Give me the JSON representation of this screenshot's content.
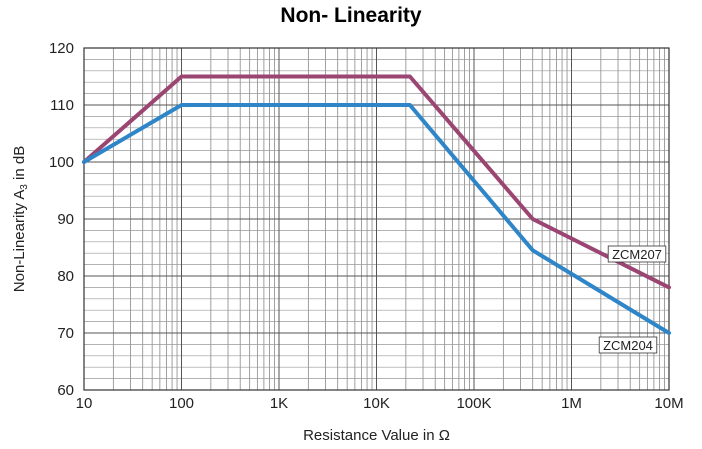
{
  "chart_data": {
    "type": "line",
    "title": "Non- Linearity",
    "xlabel": "Resistance Value in Ω",
    "ylabel": "Non-Linearity A3 in dB",
    "xscale": "log",
    "xlim": [
      10,
      10000000
    ],
    "ylim": [
      60,
      120
    ],
    "x_tick_labels": [
      "10",
      "100",
      "1K",
      "10K",
      "100K",
      "1M",
      "10M"
    ],
    "y_tick_labels": [
      "60",
      "70",
      "80",
      "90",
      "100",
      "110",
      "120"
    ],
    "grid": true,
    "series": [
      {
        "name": "ZCM207",
        "color": "#9b4672",
        "points": [
          [
            10,
            100
          ],
          [
            100,
            115
          ],
          [
            22000,
            115
          ],
          [
            400000,
            90
          ],
          [
            10000000,
            78
          ]
        ]
      },
      {
        "name": "ZCM204",
        "color": "#2e86c8",
        "points": [
          [
            10,
            100
          ],
          [
            100,
            110
          ],
          [
            22000,
            110
          ],
          [
            400000,
            84.5
          ],
          [
            10000000,
            70
          ]
        ]
      }
    ]
  }
}
